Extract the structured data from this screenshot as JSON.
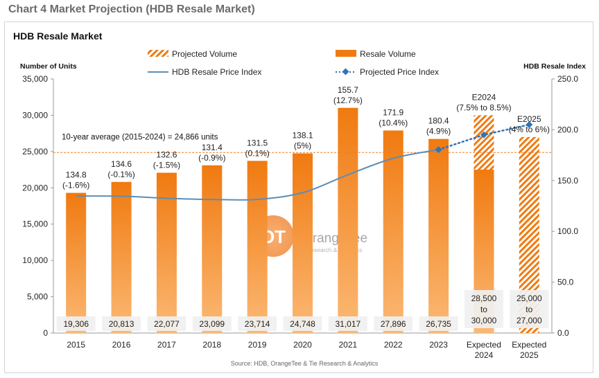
{
  "page": {
    "title": "Chart 4 Market Projection (HDB Resale Market)"
  },
  "chart_data": {
    "type": "bar",
    "title": "HDB Resale Market",
    "ylabel": "Number of Units",
    "y2label": "HDB Resale Index",
    "source": "Source: HDB, OrangeTee & Tie Research & Analytics",
    "watermark": {
      "brand": "OrangeTee",
      "tagline": "Research & Analytics",
      "mark": "OT"
    },
    "categories": [
      "2015",
      "2016",
      "2017",
      "2018",
      "2019",
      "2020",
      "2021",
      "2022",
      "2023",
      "Expected 2024",
      "Expected 2025"
    ],
    "ylim": [
      0,
      35000
    ],
    "y2lim": [
      0,
      250
    ],
    "yticks": [
      "0",
      "5,000",
      "10,000",
      "15,000",
      "20,000",
      "25,000",
      "30,000",
      "35,000"
    ],
    "y2ticks": [
      "0.0",
      "50.0",
      "100.0",
      "150.0",
      "200.0",
      "250.0"
    ],
    "legend": {
      "projected_volume": "Projected Volume",
      "resale_volume": "Resale Volume",
      "price_index": "HDB Resale Price Index",
      "projected_index": "Projected Price Index"
    },
    "average": {
      "value": 24866,
      "label": "10-year average (2015-2024) = 24,866 units"
    },
    "series": [
      {
        "name": "Resale Volume",
        "values": [
          19306,
          20813,
          22077,
          23099,
          23714,
          24748,
          31017,
          27896,
          26735,
          22500,
          null
        ]
      },
      {
        "name": "Projected Volume",
        "values": [
          null,
          null,
          null,
          null,
          null,
          null,
          null,
          null,
          null,
          30000,
          27000
        ]
      },
      {
        "name": "HDB Resale Price Index",
        "values": [
          134.8,
          134.6,
          132.6,
          131.4,
          131.5,
          138.1,
          155.7,
          171.9,
          180.4,
          null,
          null
        ]
      },
      {
        "name": "Projected Price Index",
        "values": [
          null,
          null,
          null,
          null,
          null,
          null,
          null,
          null,
          180.4,
          195.0,
          205.0
        ]
      }
    ],
    "volume_labels": [
      "19,306",
      "20,813",
      "22,077",
      "23,099",
      "23,714",
      "24,748",
      "31,017",
      "27,896",
      "26,735",
      "28,500 to 30,000",
      "25,000 to 27,000"
    ],
    "index_labels": [
      [
        "134.8",
        "(-1.6%)"
      ],
      [
        "134.6",
        "(-0.1%)"
      ],
      [
        "132.6",
        "(-1.5%)"
      ],
      [
        "131.4",
        "(-0.9%)"
      ],
      [
        "131.5",
        "(0.1%)"
      ],
      [
        "138.1",
        "(5%)"
      ],
      [
        "155.7",
        "(12.7%)"
      ],
      [
        "171.9",
        "(10.4%)"
      ],
      [
        "180.4",
        "(4.9%)"
      ],
      [
        "E2024",
        "(7.5% to 8.5%)"
      ],
      [
        "E2025",
        "(4% to 6%)"
      ]
    ],
    "colors": {
      "bar_top": "#f07a10",
      "bar_bottom": "#fbb975",
      "projected_stripe": "#f07a10",
      "index_line": "#5b8db8",
      "projected_line": "#2e75b6",
      "average_line": "#ee7b22"
    }
  }
}
